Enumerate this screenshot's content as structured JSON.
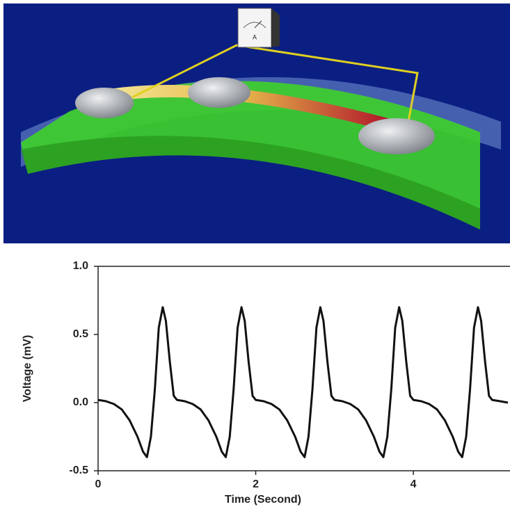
{
  "illustration": {
    "meter_label": "A"
  },
  "chart_data": {
    "type": "line",
    "xlabel": "Time (Second)",
    "ylabel": "Voltage (mV)",
    "xlim": [
      0,
      5.2
    ],
    "ylim": [
      -0.5,
      1.0
    ],
    "xticks": [
      0,
      2,
      4
    ],
    "yticks": [
      {
        "value": 1.0,
        "label": "1.0"
      },
      {
        "value": 0.5,
        "label": "0.5"
      },
      {
        "value": 0.0,
        "label": "0.0"
      },
      {
        "value": -0.5,
        "label": "-0.5"
      }
    ],
    "x": [
      0,
      0.1,
      0.2,
      0.3,
      0.4,
      0.5,
      0.57,
      0.62,
      0.67,
      0.72,
      0.77,
      0.82,
      0.86,
      0.91,
      0.96,
      1,
      1.1,
      1.2,
      1.3,
      1.4,
      1.5,
      1.57,
      1.62,
      1.67,
      1.72,
      1.77,
      1.82,
      1.86,
      1.91,
      1.96,
      2,
      2.1,
      2.2,
      2.3,
      2.4,
      2.5,
      2.57,
      2.62,
      2.67,
      2.72,
      2.77,
      2.82,
      2.86,
      2.91,
      2.96,
      3,
      3.1,
      3.2,
      3.3,
      3.4,
      3.5,
      3.57,
      3.62,
      3.67,
      3.72,
      3.77,
      3.82,
      3.86,
      3.91,
      3.96,
      4,
      4.1,
      4.2,
      4.3,
      4.4,
      4.5,
      4.57,
      4.62,
      4.67,
      4.72,
      4.77,
      4.82,
      4.86,
      4.91,
      4.96,
      5,
      5.1,
      5.2
    ],
    "series": [
      {
        "color": "#111111",
        "values": [
          0.02,
          0.01,
          -0.01,
          -0.05,
          -0.13,
          -0.25,
          -0.36,
          -0.4,
          -0.25,
          0.1,
          0.55,
          0.7,
          0.6,
          0.3,
          0.05,
          0.02,
          0.01,
          -0.01,
          -0.05,
          -0.13,
          -0.25,
          -0.36,
          -0.4,
          -0.25,
          0.1,
          0.55,
          0.7,
          0.6,
          0.3,
          0.05,
          0.02,
          0.01,
          -0.01,
          -0.05,
          -0.13,
          -0.25,
          -0.36,
          -0.4,
          -0.25,
          0.1,
          0.55,
          0.7,
          0.6,
          0.3,
          0.05,
          0.02,
          0.01,
          -0.01,
          -0.05,
          -0.13,
          -0.25,
          -0.36,
          -0.4,
          -0.25,
          0.1,
          0.55,
          0.7,
          0.6,
          0.3,
          0.05,
          0.02,
          0.01,
          -0.01,
          -0.05,
          -0.13,
          -0.25,
          -0.36,
          -0.4,
          -0.25,
          0.1,
          0.55,
          0.7,
          0.6,
          0.3,
          0.05,
          0.02,
          0.01,
          0.0
        ]
      }
    ]
  }
}
